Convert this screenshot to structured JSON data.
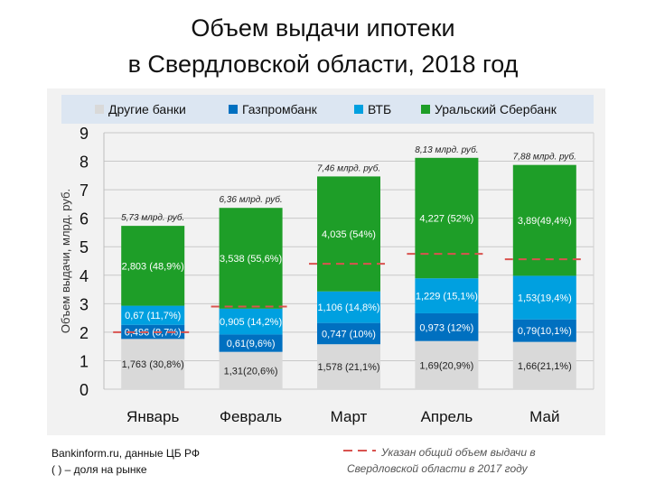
{
  "title_line1": "Объем выдачи ипотеки",
  "title_line2": "в Свердловской области, 2018 год",
  "chart_data": {
    "type": "bar",
    "stacked": true,
    "categories": [
      "Январь",
      "Февраль",
      "Март",
      "Апрель",
      "Май"
    ],
    "ylabel": "Объем выдачи,  млрд. руб.",
    "ylim": [
      0,
      9
    ],
    "yticks": [
      0,
      1,
      2,
      3,
      4,
      5,
      6,
      7,
      8,
      9
    ],
    "grid": true,
    "legend_position": "top",
    "series": [
      {
        "name": "Другие банки",
        "color": "#d9d9d9",
        "label_color": "#222222",
        "values": [
          1.763,
          1.31,
          1.578,
          1.69,
          1.66
        ],
        "labels": [
          "1,763 (30,8%)",
          "1,31(20,6%)",
          "1,578 (21,1%)",
          "1,69(20,9%)",
          "1,66(21,1%)"
        ]
      },
      {
        "name": "Газпромбанк",
        "color": "#0070c0",
        "label_color": "#ffffff",
        "values": [
          0.496,
          0.61,
          0.747,
          0.973,
          0.79
        ],
        "labels": [
          "0,496 (8,7%)",
          "0,61(9,6%)",
          "0,747 (10%)",
          "0,973 (12%)",
          "0,79(10,1%)"
        ]
      },
      {
        "name": "ВТБ",
        "color": "#00a0e0",
        "label_color": "#ffffff",
        "values": [
          0.67,
          0.905,
          1.106,
          1.229,
          1.53
        ],
        "labels": [
          "0,67 (11,7%)",
          "0,905 (14,2%)",
          "1,106 (14,8%)",
          "1,229 (15,1%)",
          "1,53(19,4%)"
        ]
      },
      {
        "name": "Уральский Сбербанк",
        "color": "#1e9e28",
        "label_color": "#ffffff",
        "values": [
          2.803,
          3.538,
          4.035,
          4.227,
          3.89
        ],
        "labels": [
          "2,803 (48,9%)",
          "3,538 (55,6%)",
          "4,035 (54%)",
          "4,227 (52%)",
          "3,89(49,4%)"
        ]
      }
    ],
    "totals": [
      "5,73 млрд. руб.",
      "6,36 млрд. руб.",
      "7,46 млрд. руб.",
      "8,13 млрд. руб.",
      "7,88 млрд. руб."
    ],
    "reference_2017": {
      "values": [
        2.0,
        2.9,
        4.4,
        4.75,
        4.56
      ],
      "color": "#d9534f"
    }
  },
  "footer": {
    "source": "Bankinform.ru,  данные ЦБ РФ",
    "share_note": "( ) – доля на рынке",
    "legend_note_line1": "Указан общий объем выдачи в",
    "legend_note_line2": "Свердловской области в 2017 году"
  }
}
